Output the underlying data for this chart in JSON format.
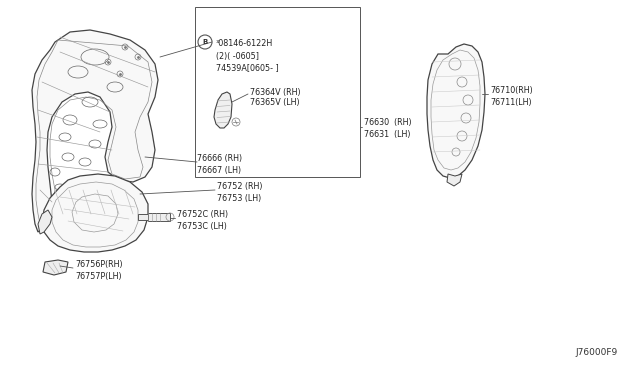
{
  "bg_color": "#ffffff",
  "fig_width": 6.4,
  "fig_height": 3.72,
  "dpi": 100,
  "footer_text": "J76000F9",
  "line_color": "#444444",
  "text_color": "#222222",
  "fs": 6.0,
  "top_group": {
    "main_panel_label1": "76666 (RH)",
    "main_panel_label2": "76667 (LH)",
    "screw_label1": "³08146-6122H",
    "screw_label2": "(2)( -0605]",
    "screw_label3": "74539A[0605- ]",
    "strip_label1": "76364V (RH)",
    "strip_label2": "76365V (LH)",
    "right_label1": "76630  (RH)",
    "right_label2": "76631  (LH)"
  },
  "bottom_group": {
    "arch_label1": "76752 (RH)",
    "arch_label2": "76753 (LH)",
    "bolt_label1": "76752C (RH)",
    "bolt_label2": "76753C (LH)",
    "small_label1": "76756P(RH)",
    "small_label2": "76757P(LH)"
  },
  "right_group": {
    "fender_label1": "76710(RH)",
    "fender_label2": "76711(LH)"
  }
}
